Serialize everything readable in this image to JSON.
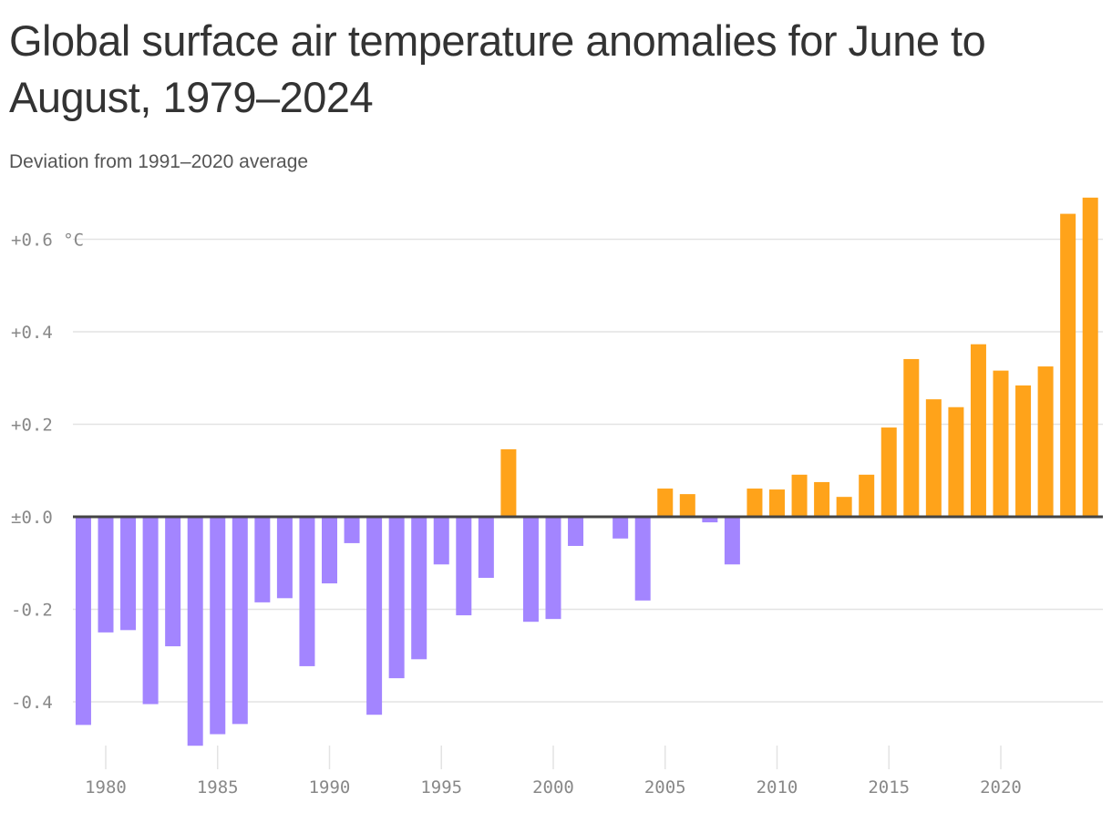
{
  "chart_data": {
    "type": "bar",
    "title": "Global surface air temperature anomalies for June to August, 1979–2024",
    "subtitle": "Deviation from 1991–2020 average",
    "xlabel": "",
    "ylabel": "",
    "ylim": [
      -0.5,
      0.7
    ],
    "grid": true,
    "y_ticks": [
      {
        "value": 0.6,
        "label": "+0.6 °C"
      },
      {
        "value": 0.4,
        "label": "+0.4"
      },
      {
        "value": 0.2,
        "label": "+0.2"
      },
      {
        "value": 0.0,
        "label": "±0.0"
      },
      {
        "value": -0.2,
        "label": "-0.2"
      },
      {
        "value": -0.4,
        "label": "-0.4"
      }
    ],
    "x_ticks": [
      "1980",
      "1985",
      "1990",
      "1995",
      "2000",
      "2005",
      "2010",
      "2015",
      "2020"
    ],
    "colors": {
      "positive": "#ffa31a",
      "negative": "#a385ff",
      "zero_line": "#444444",
      "grid": "#e3e3e3"
    },
    "categories": [
      1979,
      1980,
      1981,
      1982,
      1983,
      1984,
      1985,
      1986,
      1987,
      1988,
      1989,
      1990,
      1991,
      1992,
      1993,
      1994,
      1995,
      1996,
      1997,
      1998,
      1999,
      2000,
      2001,
      2002,
      2003,
      2004,
      2005,
      2006,
      2007,
      2008,
      2009,
      2010,
      2011,
      2012,
      2013,
      2014,
      2015,
      2016,
      2017,
      2018,
      2019,
      2020,
      2021,
      2022,
      2023,
      2024
    ],
    "values": [
      -0.45,
      -0.25,
      -0.245,
      -0.405,
      -0.28,
      -0.495,
      -0.47,
      -0.448,
      -0.185,
      -0.176,
      -0.323,
      -0.144,
      -0.057,
      -0.428,
      -0.349,
      -0.308,
      -0.103,
      -0.213,
      -0.132,
      0.146,
      -0.227,
      -0.221,
      -0.063,
      0.0,
      -0.047,
      -0.181,
      0.061,
      0.049,
      -0.012,
      -0.103,
      0.061,
      0.059,
      0.091,
      0.075,
      0.043,
      0.091,
      0.193,
      0.341,
      0.254,
      0.237,
      0.373,
      0.316,
      0.284,
      0.325,
      0.655,
      0.69
    ]
  }
}
